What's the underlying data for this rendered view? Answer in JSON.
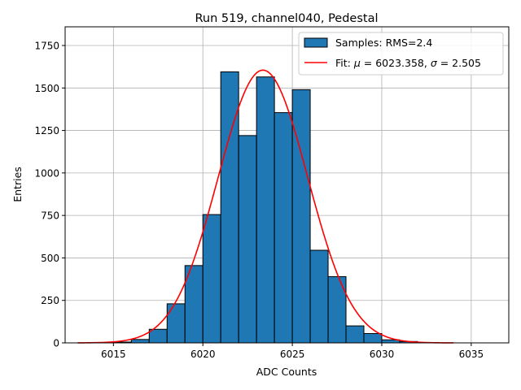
{
  "chart_data": {
    "type": "bar",
    "title": "Run 519, channel040, Pedestal",
    "xlabel": "ADC Counts",
    "ylabel": "Entries",
    "xlim": [
      6012.3,
      6037.1
    ],
    "ylim": [
      0,
      1860
    ],
    "grid": true,
    "legend_position": "top-right",
    "xticks": [
      6015,
      6020,
      6025,
      6030,
      6035
    ],
    "xtick_labels": [
      "6015",
      "6020",
      "6025",
      "6030",
      "6035"
    ],
    "yticks": [
      0,
      250,
      500,
      750,
      1000,
      1250,
      1500,
      1750
    ],
    "ytick_labels": [
      "0",
      "250",
      "500",
      "750",
      "1000",
      "1250",
      "1500",
      "1750"
    ],
    "histogram": {
      "name": "Samples: RMS=2.4",
      "color": "#1f77b4",
      "edge_color": "#000000",
      "bin_edges": [
        6015,
        6016,
        6017,
        6018,
        6019,
        6020,
        6021,
        6022,
        6023,
        6024,
        6025,
        6026,
        6027,
        6028,
        6029,
        6030,
        6031,
        6032
      ],
      "counts": [
        5,
        20,
        80,
        230,
        455,
        755,
        1595,
        1220,
        1565,
        1355,
        1490,
        545,
        390,
        100,
        55,
        18,
        8
      ]
    },
    "fit": {
      "name": "Fit: μ = 6023.358, σ = 2.505",
      "name_parts": {
        "label": "Fit: ",
        "mu_symbol": "μ",
        "mu_text": " = 6023.358, ",
        "sigma_symbol": "σ",
        "sigma_text": " = 2.505"
      },
      "color": "#ff0000",
      "mu": 6023.358,
      "sigma": 2.505,
      "amplitude": 1605,
      "x_range": [
        6013,
        6034
      ]
    }
  }
}
